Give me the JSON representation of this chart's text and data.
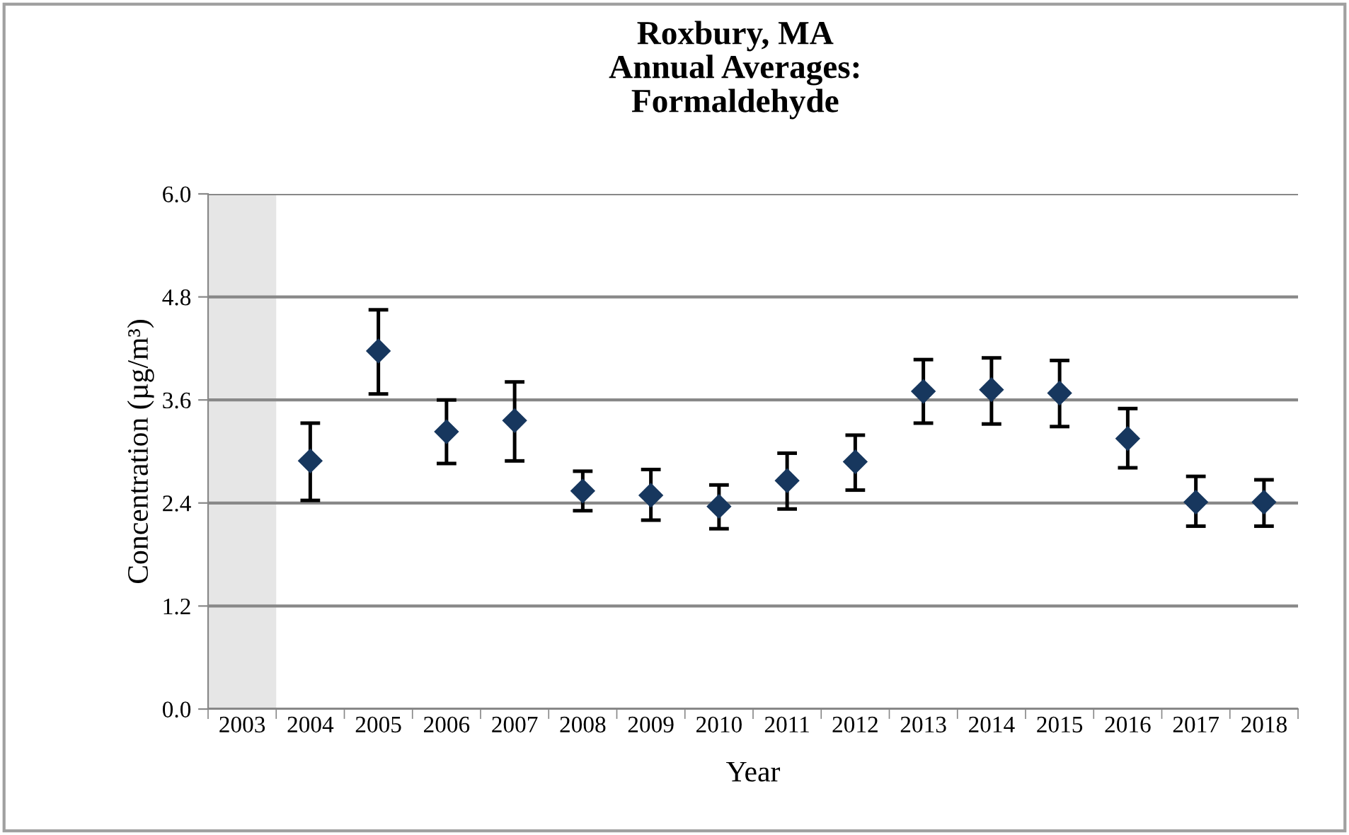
{
  "chart_data": {
    "type": "scatter",
    "title": "Roxbury, MA\nAnnual Averages:\nFormaldehyde",
    "xlabel": "Year",
    "ylabel": "Concentration (µg/m³)",
    "categories": [
      "2003",
      "2004",
      "2005",
      "2006",
      "2007",
      "2008",
      "2009",
      "2010",
      "2011",
      "2012",
      "2013",
      "2014",
      "2015",
      "2016",
      "2017",
      "2018"
    ],
    "series": [
      {
        "color": "#17375e",
        "values": [
          null,
          2.89,
          4.17,
          3.23,
          3.36,
          2.54,
          2.49,
          2.36,
          2.66,
          2.88,
          3.7,
          3.72,
          3.68,
          3.15,
          2.41,
          2.41
        ],
        "errors": [
          null,
          [
            2.43,
            3.33
          ],
          [
            3.67,
            4.65
          ],
          [
            2.86,
            3.6
          ],
          [
            2.89,
            3.81
          ],
          [
            2.31,
            2.77
          ],
          [
            2.2,
            2.79
          ],
          [
            2.1,
            2.61
          ],
          [
            2.33,
            2.98
          ],
          [
            2.55,
            3.19
          ],
          [
            3.33,
            4.07
          ],
          [
            3.32,
            4.09
          ],
          [
            3.29,
            4.06
          ],
          [
            2.81,
            3.5
          ],
          [
            2.13,
            2.71
          ],
          [
            2.13,
            2.67
          ]
        ]
      }
    ],
    "ylim": [
      0,
      6
    ],
    "yticks": [
      {
        "value": 0,
        "label": "0.0"
      },
      {
        "value": 1.2,
        "label": "1.2"
      },
      {
        "value": 2.4,
        "label": "2.4"
      },
      {
        "value": 3.6,
        "label": "3.6"
      },
      {
        "value": 4.8,
        "label": "4.8"
      },
      {
        "value": 6,
        "label": "6.0"
      }
    ],
    "bands": [
      {
        "axis": "x",
        "from": "2003",
        "to": "2003",
        "color": "#e6e6e6"
      }
    ],
    "grid": "y",
    "marker": "diamond",
    "legend": false
  }
}
